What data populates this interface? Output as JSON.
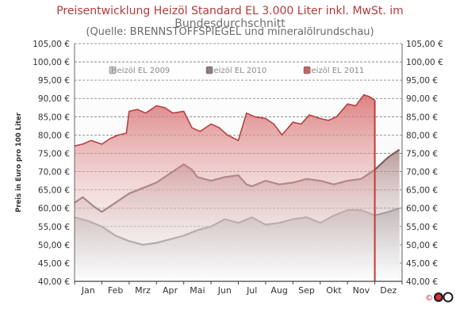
{
  "title": {
    "part1": "Preisentwicklung Heizöl Standard EL 3.000 Liter inkl. MwSt. im ",
    "part2": "Bundesdurchschnitt"
  },
  "subtitle": "(Quelle: BRENNSTOFFSPIEGEL und mineralölrundschau)",
  "logo_text": "©",
  "colors": {
    "2009": "#c9c9c9",
    "2010": "#8f7878",
    "2011": "#cf5a5a"
  },
  "chart_data": {
    "type": "area",
    "ylabel": "Preis in Euro pro 100 Liter",
    "ylim": [
      40,
      105
    ],
    "y_ticks": [
      "40,00 €",
      "45,00 €",
      "50,00 €",
      "55,00 €",
      "60,00 €",
      "65,00 €",
      "70,00 €",
      "75,00 €",
      "80,00 €",
      "85,00 €",
      "90,00 €",
      "95,00 €",
      "100,00 €",
      "105,00 €"
    ],
    "categories": [
      "Jan",
      "Feb",
      "Mrz",
      "Apr",
      "Mai",
      "Jun",
      "Jul",
      "Aug",
      "Sep",
      "Okt",
      "Nov",
      "Dez"
    ],
    "grid": true,
    "legend_position": "top",
    "series": [
      {
        "name": "Heizöl EL 2009",
        "x": [
          0,
          0.5,
          1,
          1.5,
          2,
          2.5,
          3,
          3.5,
          4,
          4.5,
          5,
          5.5,
          6,
          6.5,
          7,
          7.5,
          8,
          8.5,
          9,
          9.5,
          10,
          10.5,
          11,
          11.5,
          11.9
        ],
        "y": [
          57.5,
          56.5,
          55.0,
          52.5,
          51.0,
          50.0,
          50.5,
          51.5,
          52.5,
          54.0,
          55.0,
          57.0,
          56.0,
          57.5,
          55.5,
          56.0,
          57.0,
          57.5,
          56.0,
          58.0,
          59.5,
          59.5,
          58.0,
          59.0,
          60.0
        ]
      },
      {
        "name": "Heizöl EL 2010",
        "x": [
          0,
          0.3,
          0.7,
          1,
          1.5,
          2,
          2.5,
          3,
          3.5,
          4,
          4.3,
          4.5,
          5,
          5.5,
          6,
          6.3,
          6.5,
          7,
          7.5,
          8,
          8.5,
          9,
          9.5,
          10,
          10.5,
          11,
          11.5,
          11.9
        ],
        "y": [
          61.5,
          63.0,
          60.5,
          59.0,
          61.5,
          64.0,
          65.5,
          67.0,
          69.5,
          72.0,
          70.5,
          68.5,
          67.5,
          68.5,
          69.0,
          66.5,
          66.0,
          67.5,
          66.5,
          67.0,
          68.0,
          67.5,
          66.5,
          67.5,
          68.0,
          70.5,
          74.0,
          76.0
        ]
      },
      {
        "name": "Heizöl EL 2011",
        "x": [
          0,
          0.3,
          0.6,
          1,
          1.3,
          1.6,
          1.9,
          2,
          2.3,
          2.6,
          3,
          3.3,
          3.6,
          4,
          4.3,
          4.6,
          5,
          5.3,
          5.6,
          6,
          6.3,
          6.6,
          7,
          7.3,
          7.6,
          8,
          8.3,
          8.6,
          9,
          9.3,
          9.6,
          10,
          10.3,
          10.6,
          10.8,
          11
        ],
        "y": [
          77.0,
          77.5,
          78.5,
          77.5,
          79.0,
          80.0,
          80.5,
          86.5,
          87.0,
          86.0,
          88.0,
          87.5,
          86.0,
          86.5,
          82.0,
          81.0,
          83.0,
          82.0,
          80.0,
          78.5,
          86.0,
          85.0,
          84.5,
          83.0,
          80.0,
          83.5,
          83.0,
          85.5,
          84.5,
          84.0,
          85.0,
          88.5,
          88.0,
          91.0,
          90.5,
          89.5
        ]
      }
    ]
  }
}
